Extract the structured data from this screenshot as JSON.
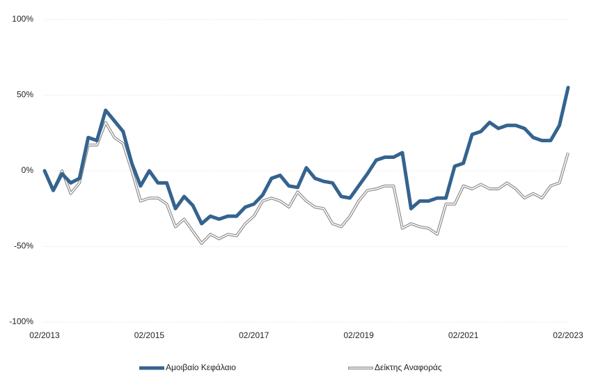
{
  "chart_data": {
    "type": "line",
    "categories": [
      "02/2013",
      null,
      null,
      null,
      null,
      null,
      null,
      null,
      null,
      null,
      null,
      null,
      "02/2015",
      null,
      null,
      null,
      null,
      null,
      null,
      null,
      null,
      null,
      null,
      null,
      "02/2017",
      null,
      null,
      null,
      null,
      null,
      null,
      null,
      null,
      null,
      null,
      null,
      "02/2019",
      null,
      null,
      null,
      null,
      null,
      null,
      null,
      null,
      null,
      null,
      null,
      "02/2021",
      null,
      null,
      null,
      null,
      null,
      null,
      null,
      null,
      null,
      null,
      null,
      "02/2023"
    ],
    "series": [
      {
        "name": "Αμοιβαίο Κεφάλαιο",
        "color": "#35638f",
        "values": [
          0,
          -13,
          -2,
          -8,
          -5,
          22,
          20,
          40,
          33,
          26,
          5,
          -10,
          0,
          -8,
          -8,
          -25,
          -17,
          -23,
          -35,
          -30,
          -32,
          -30,
          -30,
          -24,
          -22,
          -16,
          -5,
          -3,
          -10,
          -11,
          2,
          -5,
          -7,
          -8,
          -17,
          -18,
          -10,
          -2,
          7,
          9,
          9,
          12,
          -25,
          -20,
          -20,
          -18,
          -18,
          3,
          5,
          24,
          26,
          32,
          28,
          30,
          30,
          28,
          22,
          20,
          20,
          30,
          55
        ]
      },
      {
        "name": "Δείκτης Αναφοράς",
        "color": "#8c8c8c",
        "values": [
          0,
          -13,
          0,
          -15,
          -8,
          17,
          17,
          32,
          22,
          18,
          0,
          -20,
          -18,
          -18,
          -22,
          -37,
          -32,
          -40,
          -48,
          -42,
          -45,
          -42,
          -43,
          -35,
          -30,
          -20,
          -18,
          -20,
          -24,
          -14,
          -20,
          -24,
          -25,
          -35,
          -37,
          -30,
          -20,
          -13,
          -12,
          -10,
          -10,
          -38,
          -35,
          -37,
          -38,
          -42,
          -22,
          -22,
          -10,
          -12,
          -9,
          -12,
          -12,
          -8,
          -12,
          -18,
          -15,
          -18,
          -10,
          -8,
          12
        ]
      }
    ],
    "ylim": [
      -100,
      100
    ],
    "yticks": [
      {
        "value": -100,
        "label": "-100%"
      },
      {
        "value": -50,
        "label": "-50%"
      },
      {
        "value": 0,
        "label": "0%"
      },
      {
        "value": 50,
        "label": "50%"
      },
      {
        "value": 100,
        "label": "100%"
      }
    ],
    "grid": true
  }
}
